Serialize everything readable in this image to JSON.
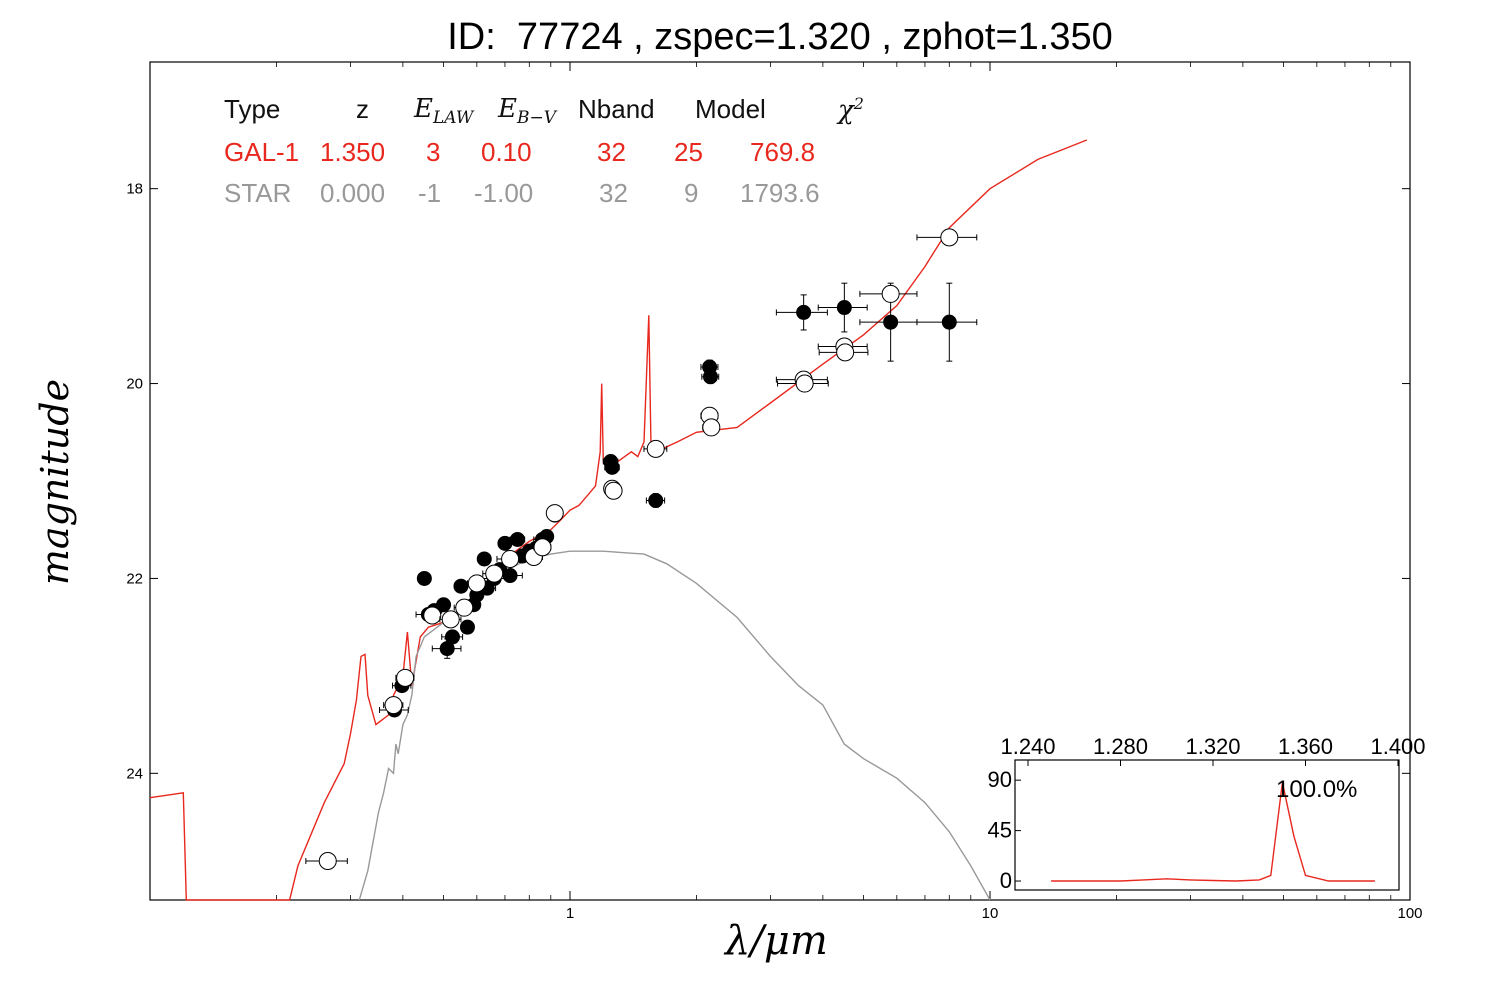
{
  "title": "ID:  77724 , zspec=1.320 , zphot=1.350",
  "table": {
    "headers": [
      "Type",
      "z",
      "E",
      "LAW",
      "E",
      "B−V",
      "Nband",
      "Model",
      "χ",
      "2"
    ],
    "rows": [
      {
        "type": "GAL-1",
        "z": "1.350",
        "e_law": "3",
        "e_bv": "0.10",
        "nband": "32",
        "model": "25",
        "chi2": "769.8",
        "color": "#e8281e"
      },
      {
        "type": "STAR",
        "z": "0.000",
        "e_law": "-1",
        "e_bv": "-1.00",
        "nband": "32",
        "model": "9",
        "chi2": "1793.6",
        "color": "#999999"
      }
    ]
  },
  "chart_data": [
    {
      "type": "scatter",
      "xlabel": "λ/μm",
      "ylabel": "magnitude",
      "xscale": "log",
      "xlim": [
        0.1,
        100
      ],
      "ylim": [
        25.3,
        16.7
      ],
      "x_ticks": [
        "1",
        "10",
        "100"
      ],
      "y_ticks": [
        "18",
        "20",
        "22",
        "24"
      ],
      "series": [
        {
          "kind": "line",
          "color": "#e8281e",
          "points": [
            [
              0.1,
              24.25
            ],
            [
              0.12,
              24.2
            ],
            [
              0.122,
              25.3
            ],
            [
              0.215,
              25.3
            ],
            [
              0.225,
              24.95
            ],
            [
              0.26,
              24.3
            ],
            [
              0.29,
              23.9
            ],
            [
              0.3,
              23.6
            ],
            [
              0.31,
              23.25
            ],
            [
              0.318,
              22.8
            ],
            [
              0.325,
              22.78
            ],
            [
              0.33,
              23.2
            ],
            [
              0.345,
              23.5
            ],
            [
              0.37,
              23.4
            ],
            [
              0.38,
              23.2
            ],
            [
              0.4,
              23.0
            ],
            [
              0.41,
              22.55
            ],
            [
              0.42,
              23.1
            ],
            [
              0.44,
              22.6
            ],
            [
              0.46,
              22.5
            ],
            [
              0.5,
              22.45
            ],
            [
              0.55,
              22.35
            ],
            [
              0.6,
              22.2
            ],
            [
              0.65,
              22.0
            ],
            [
              0.7,
              21.8
            ],
            [
              0.8,
              21.62
            ],
            [
              0.9,
              21.5
            ],
            [
              0.95,
              21.4
            ],
            [
              1.0,
              21.3
            ],
            [
              1.05,
              21.25
            ],
            [
              1.1,
              21.15
            ],
            [
              1.15,
              21.05
            ],
            [
              1.18,
              20.7
            ],
            [
              1.19,
              20.0
            ],
            [
              1.2,
              20.8
            ],
            [
              1.25,
              20.9
            ],
            [
              1.3,
              20.8
            ],
            [
              1.35,
              20.75
            ],
            [
              1.4,
              20.7
            ],
            [
              1.45,
              20.75
            ],
            [
              1.5,
              20.6
            ],
            [
              1.54,
              19.3
            ],
            [
              1.56,
              20.7
            ],
            [
              1.6,
              20.7
            ],
            [
              1.8,
              20.6
            ],
            [
              2.0,
              20.5
            ],
            [
              2.5,
              20.45
            ],
            [
              3.0,
              20.2
            ],
            [
              4.0,
              19.8
            ],
            [
              5.0,
              19.5
            ],
            [
              6.0,
              19.2
            ],
            [
              7.0,
              18.8
            ],
            [
              8.0,
              18.4
            ],
            [
              10.0,
              18.0
            ],
            [
              13.0,
              17.7
            ],
            [
              17.0,
              17.5
            ]
          ]
        },
        {
          "kind": "line",
          "color": "#999999",
          "points": [
            [
              0.315,
              25.3
            ],
            [
              0.33,
              25.0
            ],
            [
              0.35,
              24.4
            ],
            [
              0.36,
              24.2
            ],
            [
              0.37,
              23.95
            ],
            [
              0.38,
              24.0
            ],
            [
              0.385,
              23.7
            ],
            [
              0.39,
              23.8
            ],
            [
              0.4,
              23.5
            ],
            [
              0.41,
              23.4
            ],
            [
              0.42,
              23.2
            ],
            [
              0.43,
              22.8
            ],
            [
              0.45,
              22.6
            ],
            [
              0.5,
              22.45
            ],
            [
              0.55,
              22.3
            ],
            [
              0.6,
              22.15
            ],
            [
              0.65,
              22.0
            ],
            [
              0.7,
              21.92
            ],
            [
              0.8,
              21.8
            ],
            [
              0.9,
              21.75
            ],
            [
              1.0,
              21.72
            ],
            [
              1.2,
              21.72
            ],
            [
              1.5,
              21.75
            ],
            [
              1.7,
              21.85
            ],
            [
              2.0,
              22.05
            ],
            [
              2.5,
              22.4
            ],
            [
              3.0,
              22.8
            ],
            [
              3.5,
              23.1
            ],
            [
              4.0,
              23.3
            ],
            [
              4.5,
              23.7
            ],
            [
              5.0,
              23.85
            ],
            [
              6.0,
              24.05
            ],
            [
              7.0,
              24.3
            ],
            [
              8.0,
              24.6
            ],
            [
              9.0,
              24.95
            ],
            [
              10.0,
              25.3
            ]
          ]
        },
        {
          "kind": "observed",
          "marker": "filled",
          "points": [
            [
              0.382,
              23.35
            ],
            [
              0.398,
              23.1
            ],
            [
              0.45,
              22.0
            ],
            [
              0.46,
              22.37
            ],
            [
              0.475,
              22.33
            ],
            [
              0.5,
              22.27
            ],
            [
              0.51,
              22.72
            ],
            [
              0.525,
              22.6
            ],
            [
              0.55,
              22.08
            ],
            [
              0.57,
              22.5
            ],
            [
              0.59,
              22.27
            ],
            [
              0.6,
              22.17
            ],
            [
              0.625,
              21.8
            ],
            [
              0.635,
              22.1
            ],
            [
              0.66,
              22.0
            ],
            [
              0.68,
              21.91
            ],
            [
              0.7,
              21.64
            ],
            [
              0.72,
              21.97
            ],
            [
              0.75,
              21.6
            ],
            [
              0.77,
              21.77
            ],
            [
              0.8,
              21.72
            ],
            [
              0.83,
              21.69
            ],
            [
              0.86,
              21.6
            ],
            [
              0.88,
              21.57
            ],
            [
              0.92,
              21.35
            ],
            [
              1.25,
              20.8
            ],
            [
              1.26,
              20.86
            ],
            [
              1.6,
              21.2
            ],
            [
              2.15,
              19.83
            ],
            [
              2.16,
              19.93
            ],
            [
              3.6,
              19.27
            ],
            [
              4.5,
              19.22
            ],
            [
              5.8,
              19.37
            ],
            [
              8.0,
              19.37
            ]
          ],
          "x_err": [
            0.03,
            0.02,
            0,
            0.03,
            0.02,
            0,
            0.04,
            0.03,
            0,
            0.02,
            0,
            0.02,
            0,
            0.03,
            0.05,
            0.04,
            0.02,
            0.05,
            0.03,
            0.03,
            0.04,
            0.04,
            0.04,
            0.03,
            0.03,
            0.05,
            0.05,
            0.08,
            0.1,
            0.1,
            0.5,
            0.6,
            0.9,
            1.3
          ],
          "y_err": [
            0.05,
            0.05,
            0,
            0.04,
            0.04,
            0,
            0.1,
            0.05,
            0,
            0.04,
            0,
            0.04,
            0,
            0.04,
            0.04,
            0.04,
            0.04,
            0.04,
            0.04,
            0.04,
            0.04,
            0.04,
            0.04,
            0.04,
            0.05,
            0.06,
            0.06,
            0.07,
            0.07,
            0.07,
            0.18,
            0.25,
            0.4,
            0.4
          ]
        },
        {
          "kind": "observed",
          "marker": "open",
          "points": [
            [
              0.265,
              24.9
            ],
            [
              0.38,
              23.3
            ],
            [
              0.405,
              23.02
            ],
            [
              0.47,
              22.38
            ],
            [
              0.52,
              22.42
            ],
            [
              0.56,
              22.3
            ],
            [
              0.6,
              22.05
            ],
            [
              0.66,
              21.95
            ],
            [
              0.72,
              21.8
            ],
            [
              0.82,
              21.78
            ],
            [
              0.86,
              21.68
            ],
            [
              0.92,
              21.33
            ],
            [
              1.26,
              21.08
            ],
            [
              1.27,
              21.1
            ],
            [
              1.6,
              20.67
            ],
            [
              2.15,
              20.33
            ],
            [
              2.17,
              20.45
            ],
            [
              3.6,
              19.96
            ],
            [
              3.62,
              20.0
            ],
            [
              4.5,
              19.62
            ],
            [
              4.52,
              19.68
            ],
            [
              5.8,
              19.08
            ],
            [
              8.0,
              18.5
            ]
          ],
          "x_err": [
            0.03,
            0.02,
            0.02,
            0.02,
            0.03,
            0.03,
            0.03,
            0.04,
            0.05,
            0.04,
            0.04,
            0.03,
            0.05,
            0.05,
            0.1,
            0.1,
            0.1,
            0.5,
            0.5,
            0.6,
            0.6,
            0.9,
            1.3
          ],
          "y_err": [
            0,
            0.05,
            0.05,
            0.04,
            0.04,
            0.04,
            0.04,
            0.04,
            0.04,
            0.04,
            0.04,
            0.04,
            0.05,
            0.05,
            0.05,
            0.05,
            0.05,
            0.06,
            0.06,
            0.06,
            0.06,
            0.06,
            0.05
          ]
        }
      ]
    },
    {
      "type": "line",
      "inset": true,
      "xlim": [
        1.24,
        1.4
      ],
      "ylim": [
        -8,
        108
      ],
      "x_ticks": [
        "1.240",
        "1.280",
        "1.320",
        "1.360",
        "1.400"
      ],
      "y_ticks": [
        "0",
        "45",
        "90"
      ],
      "annotation": "100.0%",
      "color": "#e8281e",
      "x": [
        1.25,
        1.26,
        1.27,
        1.28,
        1.29,
        1.3,
        1.31,
        1.32,
        1.33,
        1.34,
        1.345,
        1.35,
        1.355,
        1.36,
        1.37,
        1.38,
        1.39
      ],
      "values": [
        0,
        0,
        0,
        0,
        1,
        2,
        1,
        0.5,
        0,
        1,
        5,
        88,
        40,
        5,
        0,
        0,
        0
      ]
    }
  ]
}
